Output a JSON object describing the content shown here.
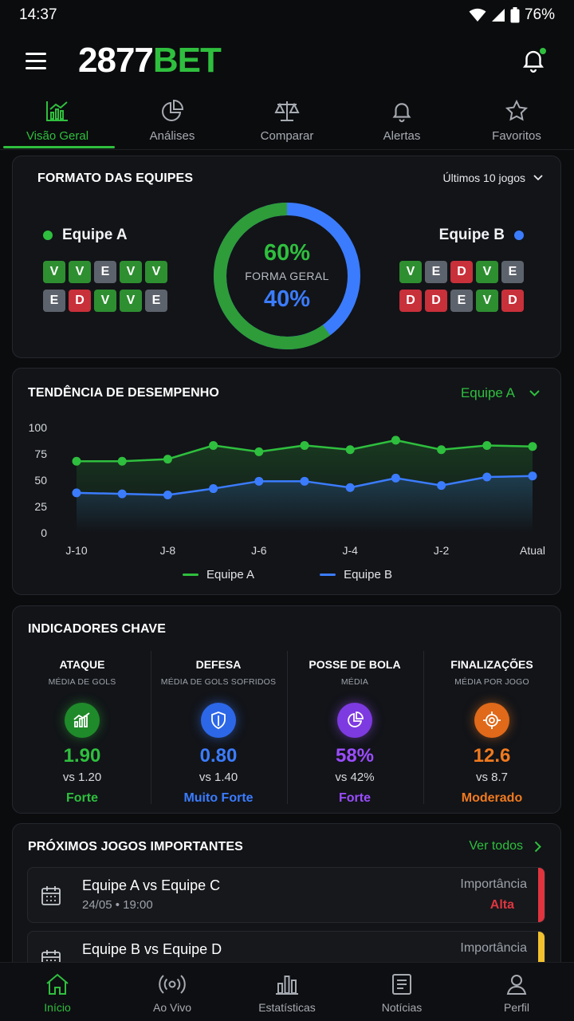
{
  "status": {
    "time": "14:37",
    "battery": "76%"
  },
  "brand": {
    "part1": "2877",
    "part2": "BET"
  },
  "top_tabs": [
    {
      "label": "Visão Geral",
      "icon": "chart-line-icon"
    },
    {
      "label": "Análises",
      "icon": "pie-chart-icon"
    },
    {
      "label": "Comparar",
      "icon": "scale-icon"
    },
    {
      "label": "Alertas",
      "icon": "bell-icon"
    },
    {
      "label": "Favoritos",
      "icon": "star-icon"
    }
  ],
  "formato": {
    "title": "FORMATO DAS EQUIPES",
    "filter": "Últimos 10 jogos",
    "team_a": {
      "name": "Equipe A",
      "color": "#2fbf3e",
      "row1": [
        "V",
        "V",
        "E",
        "V",
        "V"
      ],
      "row2": [
        "E",
        "D",
        "V",
        "V",
        "E"
      ]
    },
    "team_b": {
      "name": "Equipe B",
      "color": "#3b7cff",
      "row1": [
        "V",
        "E",
        "D",
        "V",
        "E"
      ],
      "row2": [
        "D",
        "D",
        "E",
        "V",
        "D"
      ]
    },
    "donut": {
      "a_pct": 60,
      "a_label": "60%",
      "center_label": "FORMA GERAL",
      "b_label": "40%"
    }
  },
  "tendencia": {
    "title": "TENDÊNCIA DE DESEMPENHO",
    "selected_team": "Equipe A"
  },
  "chart_data": {
    "type": "line",
    "x": [
      "J-10",
      "J-9",
      "J-8",
      "J-7",
      "J-6",
      "J-5",
      "J-4",
      "J-3",
      "J-2",
      "J-1",
      "Atual"
    ],
    "x_tick_labels": [
      "J-10",
      "J-8",
      "J-6",
      "J-4",
      "J-2",
      "Atual"
    ],
    "ylim": [
      0,
      100
    ],
    "y_ticks": [
      0,
      25,
      50,
      75,
      100
    ],
    "grid": false,
    "legend": "bottom",
    "series": [
      {
        "name": "Equipe A",
        "color": "#2fbf3e",
        "values": [
          68,
          68,
          70,
          83,
          77,
          83,
          79,
          88,
          79,
          83,
          82
        ]
      },
      {
        "name": "Equipe B",
        "color": "#3b7cff",
        "values": [
          38,
          37,
          36,
          42,
          49,
          49,
          43,
          52,
          45,
          53,
          54
        ]
      }
    ]
  },
  "indicadores": {
    "title": "INDICADORES CHAVE",
    "items": [
      {
        "name": "ATAQUE",
        "sub": "MÉDIA DE GOLS",
        "value": "1.90",
        "vs": "vs 1.20",
        "level": "Forte",
        "color": "#2fbf3e",
        "icon": "bar-chart-icon"
      },
      {
        "name": "DEFESA",
        "sub": "MÉDIA DE GOLS SOFRIDOS",
        "value": "0.80",
        "vs": "vs 1.40",
        "level": "Muito Forte",
        "color": "#3b7cff",
        "icon": "shield-icon"
      },
      {
        "name": "POSSE DE BOLA",
        "sub": "MÉDIA",
        "value": "58%",
        "vs": "vs 42%",
        "level": "Forte",
        "color": "#9b4dff",
        "icon": "pie-chart-icon"
      },
      {
        "name": "FINALIZAÇÕES",
        "sub": "MÉDIA POR JOGO",
        "value": "12.6",
        "vs": "vs 8.7",
        "level": "Moderado",
        "color": "#f07a1f",
        "icon": "target-icon"
      }
    ]
  },
  "proximos": {
    "title": "PRÓXIMOS JOGOS IMPORTANTES",
    "ver_todos": "Ver todos",
    "matches": [
      {
        "teams": "Equipe A vs Equipe C",
        "date": "24/05 • 19:00",
        "importance_label": "Importância",
        "importance": "Alta",
        "color": "#e0353f"
      },
      {
        "teams": "Equipe B vs Equipe D",
        "date": "",
        "importance_label": "Importância",
        "importance": "",
        "color": "#f2c12e"
      }
    ]
  },
  "bottom_nav": [
    {
      "label": "Início",
      "icon": "home-icon"
    },
    {
      "label": "Ao Vivo",
      "icon": "broadcast-icon"
    },
    {
      "label": "Estatísticas",
      "icon": "stats-icon"
    },
    {
      "label": "Notícias",
      "icon": "news-icon"
    },
    {
      "label": "Perfil",
      "icon": "user-icon"
    }
  ]
}
